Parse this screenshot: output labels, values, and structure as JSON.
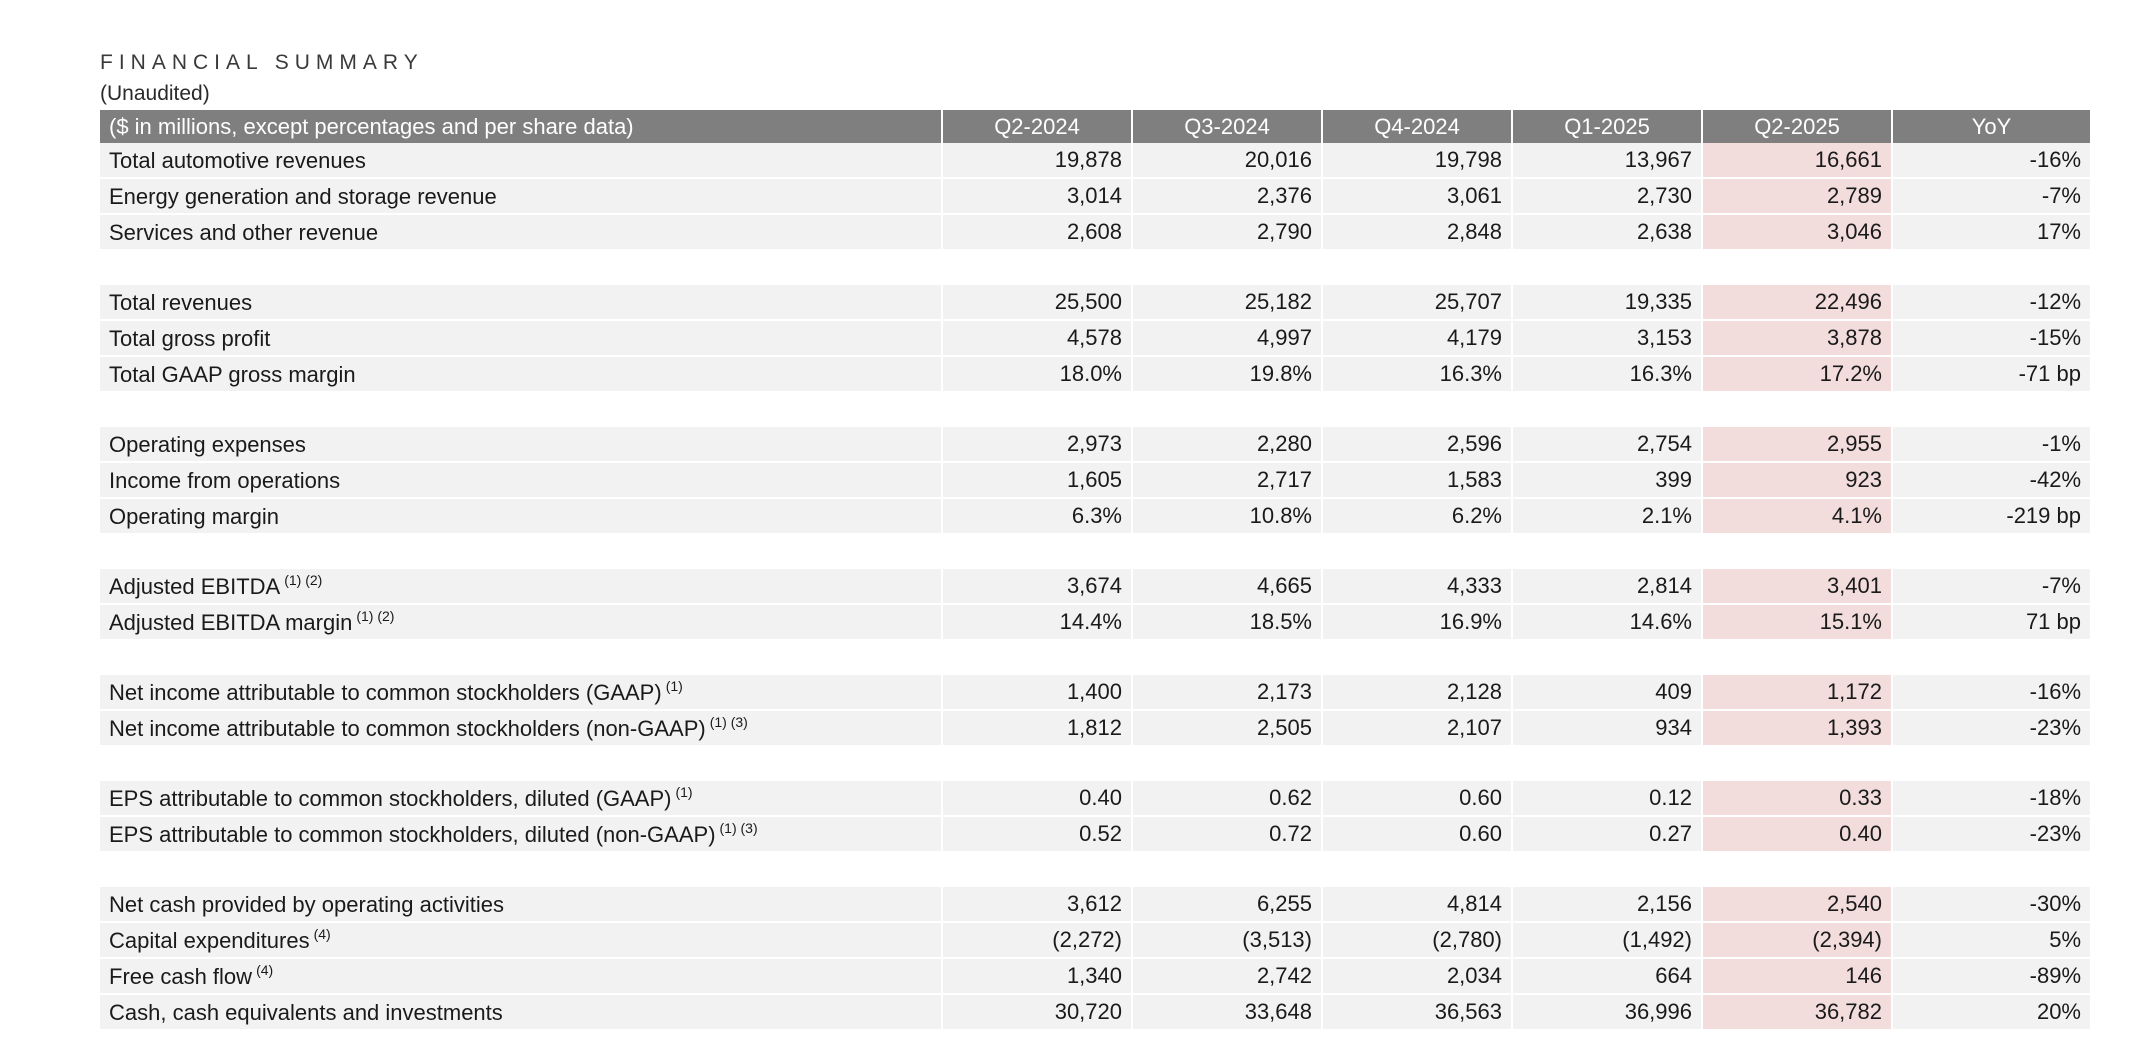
{
  "title": "FINANCIAL SUMMARY",
  "subtitle": "(Unaudited)",
  "columns": {
    "label": "($ in millions, except percentages and per share data)",
    "q2_2024": "Q2-2024",
    "q3_2024": "Q3-2024",
    "q4_2024": "Q4-2024",
    "q1_2025": "Q1-2025",
    "q2_2025": "Q2-2025",
    "yoy": "YoY"
  },
  "rows": [
    {
      "label": "Total automotive revenues",
      "note": "",
      "values": [
        "19,878",
        "20,016",
        "19,798",
        "13,967",
        "16,661",
        "-16%"
      ]
    },
    {
      "label": "Energy generation and storage revenue",
      "note": "",
      "values": [
        "3,014",
        "2,376",
        "3,061",
        "2,730",
        "2,789",
        "-7%"
      ]
    },
    {
      "label": "Services and other revenue",
      "note": "",
      "values": [
        "2,608",
        "2,790",
        "2,848",
        "2,638",
        "3,046",
        "17%"
      ]
    },
    {
      "label": "Total revenues",
      "note": "",
      "values": [
        "25,500",
        "25,182",
        "25,707",
        "19,335",
        "22,496",
        "-12%"
      ]
    },
    {
      "label": "Total gross profit",
      "note": "",
      "values": [
        "4,578",
        "4,997",
        "4,179",
        "3,153",
        "3,878",
        "-15%"
      ]
    },
    {
      "label": "Total GAAP gross margin",
      "note": "",
      "values": [
        "18.0%",
        "19.8%",
        "16.3%",
        "16.3%",
        "17.2%",
        "-71 bp"
      ]
    },
    {
      "label": "Operating expenses",
      "note": "",
      "values": [
        "2,973",
        "2,280",
        "2,596",
        "2,754",
        "2,955",
        "-1%"
      ]
    },
    {
      "label": "Income from operations",
      "note": "",
      "values": [
        "1,605",
        "2,717",
        "1,583",
        "399",
        "923",
        "-42%"
      ]
    },
    {
      "label": "Operating margin",
      "note": "",
      "values": [
        "6.3%",
        "10.8%",
        "6.2%",
        "2.1%",
        "4.1%",
        "-219 bp"
      ]
    },
    {
      "label": "Adjusted EBITDA",
      "note": "(1) (2)",
      "values": [
        "3,674",
        "4,665",
        "4,333",
        "2,814",
        "3,401",
        "-7%"
      ]
    },
    {
      "label": "Adjusted EBITDA margin",
      "note": "(1) (2)",
      "values": [
        "14.4%",
        "18.5%",
        "16.9%",
        "14.6%",
        "15.1%",
        "71 bp"
      ]
    },
    {
      "label": "Net income attributable to common stockholders (GAAP)",
      "note": "(1)",
      "values": [
        "1,400",
        "2,173",
        "2,128",
        "409",
        "1,172",
        "-16%"
      ]
    },
    {
      "label": "Net income attributable to common stockholders (non-GAAP)",
      "note": "(1) (3)",
      "values": [
        "1,812",
        "2,505",
        "2,107",
        "934",
        "1,393",
        "-23%"
      ]
    },
    {
      "label": "EPS attributable to common stockholders, diluted (GAAP)",
      "note": "(1)",
      "values": [
        "0.40",
        "0.62",
        "0.60",
        "0.12",
        "0.33",
        "-18%"
      ]
    },
    {
      "label": "EPS attributable to common stockholders, diluted (non-GAAP)",
      "note": "(1) (3)",
      "values": [
        "0.52",
        "0.72",
        "0.60",
        "0.27",
        "0.40",
        "-23%"
      ]
    },
    {
      "label": "Net cash provided by operating activities",
      "note": "",
      "values": [
        "3,612",
        "6,255",
        "4,814",
        "2,156",
        "2,540",
        "-30%"
      ]
    },
    {
      "label": "Capital expenditures",
      "note": "(4)",
      "values": [
        "(2,272)",
        "(3,513)",
        "(2,780)",
        "(1,492)",
        "(2,394)",
        "5%"
      ]
    },
    {
      "label": "Free cash flow",
      "note": "(4)",
      "values": [
        "1,340",
        "2,742",
        "2,034",
        "664",
        "146",
        "-89%"
      ]
    },
    {
      "label": "Cash, cash equivalents and investments",
      "note": "",
      "values": [
        "30,720",
        "33,648",
        "36,563",
        "36,996",
        "36,782",
        "20%"
      ]
    }
  ],
  "colors": {
    "header_bg": "#7f7f7f",
    "row_bg": "#f2f2f2",
    "highlight_bg": "#f2dcdc"
  }
}
